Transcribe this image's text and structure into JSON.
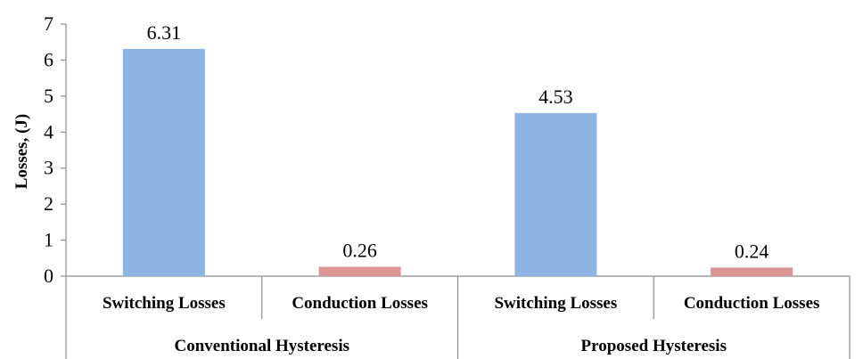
{
  "chart_data": {
    "type": "bar",
    "title": "",
    "ylabel": "Losses, (J)",
    "xlabel": "",
    "ylim": [
      0,
      7
    ],
    "yticks": [
      0,
      1,
      2,
      3,
      4,
      5,
      6,
      7
    ],
    "grid": false,
    "groups": [
      "Conventional Hysteresis",
      "Proposed Hysteresis"
    ],
    "categories": [
      "Switching Losses",
      "Conduction Losses",
      "Switching Losses",
      "Conduction Losses"
    ],
    "category_groups": [
      0,
      0,
      1,
      1
    ],
    "values": [
      6.31,
      0.26,
      4.53,
      0.24
    ],
    "data_labels": [
      "6.31",
      "0.26",
      "4.53",
      "0.24"
    ],
    "bar_colors": [
      "#8eb4e3",
      "#d99694",
      "#8eb4e3",
      "#d99694"
    ]
  }
}
